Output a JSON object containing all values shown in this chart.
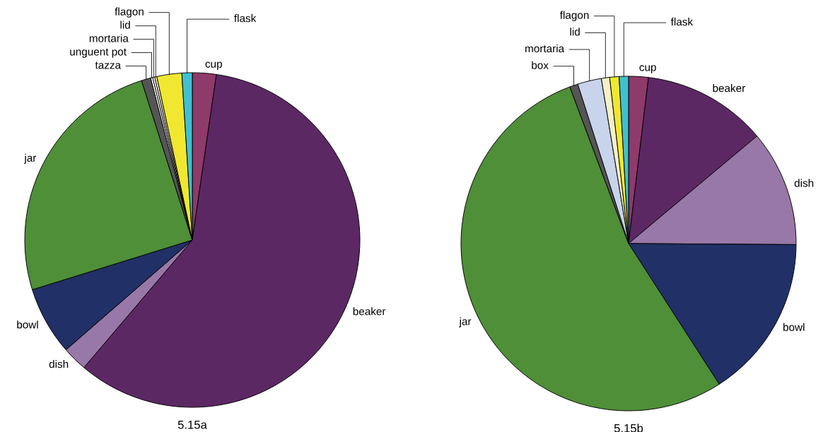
{
  "chart_data": [
    {
      "type": "pie",
      "title": "5.15a",
      "legend": false,
      "categories": [
        "cup",
        "beaker",
        "dish",
        "bowl",
        "jar",
        "tazza",
        "unguent pot",
        "mortaria",
        "lid",
        "flagon",
        "flask"
      ],
      "values": [
        2.3,
        58.9,
        2.4,
        6.6,
        24.9,
        0.9,
        0.2,
        0.2,
        0.2,
        2.4,
        1.0
      ],
      "colors": [
        "#8e3a6a",
        "#5c2864",
        "#9878a8",
        "#213066",
        "#4f8f38",
        "#555555",
        "#ffffff",
        "#ffffff",
        "#f5f0c8",
        "#f0e830",
        "#40c0d0"
      ]
    },
    {
      "type": "pie",
      "title": "5.15b",
      "legend": false,
      "categories": [
        "cup",
        "beaker",
        "dish",
        "bowl",
        "jar",
        "box",
        "mortaria",
        "lid",
        "flagon",
        "flask"
      ],
      "values": [
        1.9,
        12.0,
        11.2,
        15.8,
        53.4,
        0.8,
        2.3,
        0.8,
        0.9,
        0.9
      ],
      "colors": [
        "#8e3a6a",
        "#5c2864",
        "#9878a8",
        "#213066",
        "#4f8f38",
        "#555555",
        "#c8d4ec",
        "#f5f0c8",
        "#f0e830",
        "#40c0d0"
      ]
    }
  ]
}
